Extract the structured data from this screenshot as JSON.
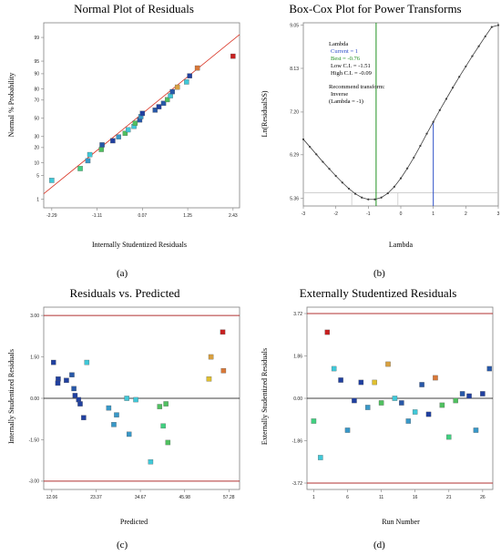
{
  "captions": [
    "(a)",
    "(b)",
    "(c)",
    "(d)"
  ],
  "chart_data": [
    {
      "type": "scatter",
      "title": "Normal Plot of Residuals",
      "xlabel": "Internally Studentized Residuals",
      "ylabel": "Normal % Probability",
      "xlim": [
        -2.5,
        2.6
      ],
      "xticks": [
        -2.29,
        -1.11,
        0.07,
        1.25,
        2.43
      ],
      "xtick_labels": [
        "-2.29",
        "-1.11",
        "0.07",
        "1.25",
        "2.43"
      ],
      "yticks": [
        1,
        5,
        10,
        20,
        30,
        50,
        70,
        80,
        90,
        95,
        99
      ],
      "ytick_labels": [
        "1",
        "5",
        "10",
        "20",
        "30",
        "50",
        "70",
        "80",
        "90",
        "95",
        "99"
      ],
      "points": [
        {
          "x": -2.29,
          "y": 3.7,
          "color": "#40c8d8"
        },
        {
          "x": -1.55,
          "y": 7.4,
          "color": "#40d080"
        },
        {
          "x": -1.35,
          "y": 11.1,
          "color": "#3898c8"
        },
        {
          "x": -1.3,
          "y": 14.8,
          "color": "#40c8d8"
        },
        {
          "x": -1.0,
          "y": 18.5,
          "color": "#50c060"
        },
        {
          "x": -0.98,
          "y": 22.2,
          "color": "#2858a8"
        },
        {
          "x": -0.7,
          "y": 25.9,
          "color": "#2040a0"
        },
        {
          "x": -0.55,
          "y": 29.6,
          "color": "#3898c8"
        },
        {
          "x": -0.38,
          "y": 33.3,
          "color": "#50c060"
        },
        {
          "x": -0.3,
          "y": 37.0,
          "color": "#40c8d8"
        },
        {
          "x": -0.15,
          "y": 40.7,
          "color": "#40c8d8"
        },
        {
          "x": -0.12,
          "y": 44.4,
          "color": "#50c060"
        },
        {
          "x": 0.0,
          "y": 48.1,
          "color": "#2858a8"
        },
        {
          "x": 0.03,
          "y": 51.9,
          "color": "#3898c8"
        },
        {
          "x": 0.07,
          "y": 55.6,
          "color": "#2040a0"
        },
        {
          "x": 0.4,
          "y": 59.3,
          "color": "#2858a8"
        },
        {
          "x": 0.5,
          "y": 63.0,
          "color": "#2040a0"
        },
        {
          "x": 0.62,
          "y": 66.7,
          "color": "#2858a8"
        },
        {
          "x": 0.72,
          "y": 70.4,
          "color": "#50c060"
        },
        {
          "x": 0.8,
          "y": 74.1,
          "color": "#40c8d8"
        },
        {
          "x": 0.85,
          "y": 77.8,
          "color": "#2858a8"
        },
        {
          "x": 0.98,
          "y": 81.5,
          "color": "#d8a040"
        },
        {
          "x": 1.22,
          "y": 85.2,
          "color": "#40c8d8"
        },
        {
          "x": 1.3,
          "y": 88.9,
          "color": "#2040a0"
        },
        {
          "x": 1.5,
          "y": 92.6,
          "color": "#d87838"
        },
        {
          "x": 2.43,
          "y": 96.3,
          "color": "#c82020"
        }
      ],
      "fit_line": {
        "x": [
          -2.5,
          2.6
        ],
        "y": [
          1.5,
          99.2
        ],
        "color": "#d83020"
      }
    },
    {
      "type": "line",
      "title": "Box-Cox Plot for Power Transforms",
      "xlabel": "Lambda",
      "ylabel": "Ln(ResidualSS)",
      "xlim": [
        -3,
        3
      ],
      "ylim": [
        5.2,
        9.1
      ],
      "xticks": [
        -3,
        -2,
        -1,
        0,
        1,
        2,
        3
      ],
      "xtick_labels": [
        "-3",
        "-2",
        "-1",
        "0",
        "1",
        "2",
        "3"
      ],
      "yticks": [
        5.36,
        6.29,
        7.2,
        8.13,
        9.05
      ],
      "ytick_labels": [
        "5.36",
        "6.29",
        "7.20",
        "8.13",
        "9.05"
      ],
      "x": [
        -3.0,
        -2.8,
        -2.6,
        -2.4,
        -2.2,
        -2.0,
        -1.8,
        -1.6,
        -1.4,
        -1.2,
        -1.0,
        -0.8,
        -0.6,
        -0.4,
        -0.2,
        0.0,
        0.2,
        0.4,
        0.6,
        0.8,
        1.0,
        1.2,
        1.4,
        1.6,
        1.8,
        2.0,
        2.2,
        2.4,
        2.6,
        2.8,
        3.0
      ],
      "y": [
        6.62,
        6.46,
        6.3,
        6.14,
        5.99,
        5.84,
        5.7,
        5.57,
        5.46,
        5.38,
        5.34,
        5.34,
        5.38,
        5.47,
        5.61,
        5.79,
        6.0,
        6.23,
        6.48,
        6.74,
        6.99,
        7.24,
        7.48,
        7.72,
        7.95,
        8.17,
        8.39,
        8.6,
        8.81,
        9.01,
        9.05
      ],
      "ci_level": 5.48,
      "lambda_best": -0.76,
      "lambda_current": 1,
      "lambda_low_ci": -1.51,
      "lambda_high_ci": -0.09,
      "annotation_lines": [
        "Lambda",
        "Current = 1",
        "Best = -0.76",
        "Low C.I. = -1.51",
        "High C.I. = -0.09",
        "",
        "Recommend transform:",
        "Inverse",
        " (Lambda = -1)"
      ],
      "colors": {
        "current": "#3050c8",
        "best": "#209020",
        "ci": "#c8c8c8",
        "curve": "#404040",
        "ci_line": "#e05050"
      }
    },
    {
      "type": "scatter",
      "title": "Residuals vs. Predicted",
      "xlabel": "Predicted",
      "ylabel": "Internally Studentized Residuals",
      "xlim": [
        10,
        60
      ],
      "ylim": [
        -3.3,
        3.3
      ],
      "xticks": [
        12.06,
        23.37,
        34.67,
        45.98,
        57.28
      ],
      "xtick_labels": [
        "12.06",
        "23.37",
        "34.67",
        "45.98",
        "57.28"
      ],
      "yticks": [
        -3.0,
        -1.5,
        0.0,
        1.5,
        3.0
      ],
      "ytick_labels": [
        "-3.00",
        "-1.50",
        "0.00",
        "1.50",
        "3.00"
      ],
      "limit_lines": [
        -3.0,
        3.0
      ],
      "points": [
        {
          "x": 12.5,
          "y": 1.3,
          "color": "#2040a0"
        },
        {
          "x": 13.7,
          "y": 0.7,
          "color": "#2040a0"
        },
        {
          "x": 13.6,
          "y": 0.55,
          "color": "#2040a0"
        },
        {
          "x": 15.8,
          "y": 0.65,
          "color": "#2040a0"
        },
        {
          "x": 17.2,
          "y": 0.85,
          "color": "#2858a8"
        },
        {
          "x": 17.7,
          "y": 0.35,
          "color": "#2858a8"
        },
        {
          "x": 18.0,
          "y": 0.1,
          "color": "#2040a0"
        },
        {
          "x": 18.9,
          "y": -0.05,
          "color": "#2040a0"
        },
        {
          "x": 19.3,
          "y": -0.2,
          "color": "#2040a0"
        },
        {
          "x": 20.2,
          "y": -0.7,
          "color": "#2040a0"
        },
        {
          "x": 21.0,
          "y": 1.3,
          "color": "#40c8d8"
        },
        {
          "x": 26.6,
          "y": -0.35,
          "color": "#3898c8"
        },
        {
          "x": 27.9,
          "y": -0.95,
          "color": "#3898c8"
        },
        {
          "x": 28.6,
          "y": -0.6,
          "color": "#3898c8"
        },
        {
          "x": 31.2,
          "y": 0.0,
          "color": "#40c8d8"
        },
        {
          "x": 31.8,
          "y": -1.3,
          "color": "#3898c8"
        },
        {
          "x": 33.5,
          "y": -0.05,
          "color": "#40c8d8"
        },
        {
          "x": 37.3,
          "y": -2.3,
          "color": "#40c8d8"
        },
        {
          "x": 39.6,
          "y": -0.3,
          "color": "#50c060"
        },
        {
          "x": 40.5,
          "y": -1.0,
          "color": "#40d080"
        },
        {
          "x": 41.2,
          "y": -0.2,
          "color": "#50c060"
        },
        {
          "x": 41.7,
          "y": -1.6,
          "color": "#50c060"
        },
        {
          "x": 52.2,
          "y": 0.7,
          "color": "#e0c030"
        },
        {
          "x": 52.7,
          "y": 1.5,
          "color": "#d8a040"
        },
        {
          "x": 55.9,
          "y": 1.0,
          "color": "#d87838"
        },
        {
          "x": 55.7,
          "y": 2.4,
          "color": "#c82020"
        }
      ]
    },
    {
      "type": "scatter",
      "title": "Externally Studentized Residuals",
      "xlabel": "Run Number",
      "ylabel": "Externally Studentized Residuals",
      "xlim": [
        0,
        27.5
      ],
      "ylim": [
        -4.0,
        4.0
      ],
      "xticks": [
        1,
        6,
        11,
        16,
        21,
        26
      ],
      "xtick_labels": [
        "1",
        "6",
        "11",
        "16",
        "21",
        "26"
      ],
      "yticks": [
        -3.72,
        -1.86,
        0.0,
        1.86,
        3.72
      ],
      "ytick_labels": [
        "-3.72",
        "-1.86",
        "0.00",
        "1.86",
        "3.72"
      ],
      "limit_lines": [
        -3.72,
        3.72
      ],
      "points": [
        {
          "x": 1,
          "y": -1.0,
          "color": "#40d080"
        },
        {
          "x": 2,
          "y": -2.6,
          "color": "#40c8d8"
        },
        {
          "x": 3,
          "y": 2.9,
          "color": "#c82020"
        },
        {
          "x": 4,
          "y": 1.3,
          "color": "#40c8d8"
        },
        {
          "x": 5,
          "y": 0.8,
          "color": "#2040a0"
        },
        {
          "x": 6,
          "y": -1.4,
          "color": "#3898c8"
        },
        {
          "x": 7,
          "y": -0.1,
          "color": "#2040a0"
        },
        {
          "x": 8,
          "y": 0.7,
          "color": "#2040a0"
        },
        {
          "x": 9,
          "y": -0.4,
          "color": "#3898c8"
        },
        {
          "x": 10,
          "y": 0.7,
          "color": "#e0c030"
        },
        {
          "x": 11,
          "y": -0.2,
          "color": "#50c060"
        },
        {
          "x": 12,
          "y": 1.5,
          "color": "#d8a040"
        },
        {
          "x": 13,
          "y": 0.0,
          "color": "#40c8d8"
        },
        {
          "x": 14,
          "y": -0.2,
          "color": "#2858a8"
        },
        {
          "x": 15,
          "y": -1.0,
          "color": "#3898c8"
        },
        {
          "x": 16,
          "y": -0.6,
          "color": "#40c8d8"
        },
        {
          "x": 17,
          "y": 0.6,
          "color": "#2858a8"
        },
        {
          "x": 18,
          "y": -0.7,
          "color": "#2040a0"
        },
        {
          "x": 19,
          "y": 0.9,
          "color": "#d87838"
        },
        {
          "x": 20,
          "y": -0.3,
          "color": "#50c060"
        },
        {
          "x": 21,
          "y": -1.7,
          "color": "#40d080"
        },
        {
          "x": 22,
          "y": -0.1,
          "color": "#50c060"
        },
        {
          "x": 23,
          "y": 0.2,
          "color": "#2858a8"
        },
        {
          "x": 24,
          "y": 0.1,
          "color": "#2040a0"
        },
        {
          "x": 25,
          "y": -1.4,
          "color": "#3898c8"
        },
        {
          "x": 26,
          "y": 0.2,
          "color": "#2040a0"
        },
        {
          "x": 27,
          "y": 1.3,
          "color": "#2858a8"
        }
      ]
    }
  ]
}
